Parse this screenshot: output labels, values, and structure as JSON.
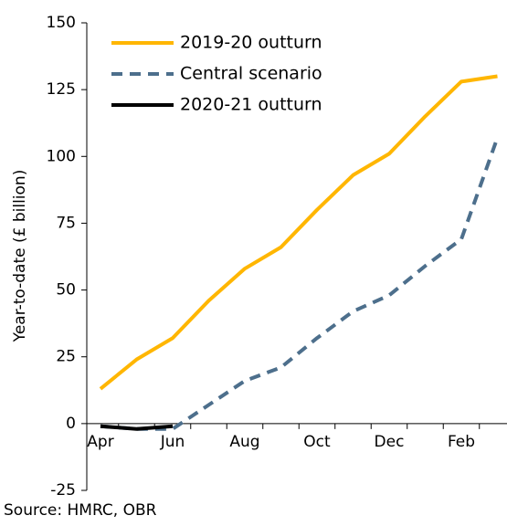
{
  "chart_data": {
    "type": "line",
    "y_label": "Year-to-date (£ billion)",
    "source": "Source: HMRC, OBR",
    "categories": [
      "Apr",
      null,
      "Jun",
      null,
      "Aug",
      null,
      "Oct",
      null,
      "Dec",
      null,
      "Feb",
      null
    ],
    "series": [
      {
        "name": "2019-20 outturn",
        "color": "#ffb600",
        "dash": false,
        "values": [
          13,
          24,
          32,
          46,
          58,
          66,
          80,
          93,
          101,
          115,
          128,
          130
        ]
      },
      {
        "name": "Central scenario",
        "color": "#4d6f8c",
        "dash": true,
        "values": [
          -1,
          -2,
          -2,
          7,
          16,
          21,
          32,
          42,
          48,
          59,
          69,
          107
        ]
      },
      {
        "name": "2020-21 outturn",
        "color": "#000000",
        "dash": false,
        "values": [
          -1,
          -2,
          -1,
          null,
          null,
          null,
          null,
          null,
          null,
          null,
          null,
          null
        ]
      }
    ],
    "ylim": [
      -25,
      150
    ],
    "yticks": [
      -25,
      0,
      25,
      50,
      75,
      100,
      125,
      150
    ],
    "legend": "upper left"
  }
}
